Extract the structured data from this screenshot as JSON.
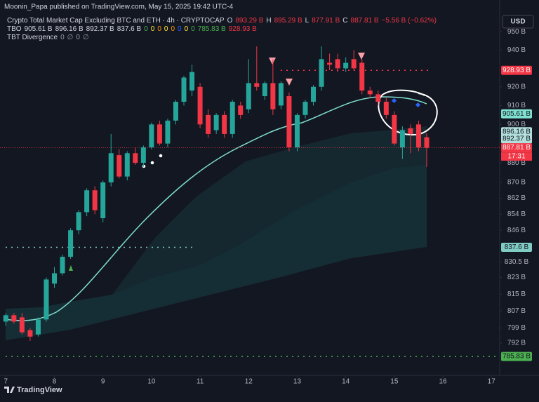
{
  "publisher": "Moonin_Papa published on TradingView.com, May 15, 2025 19:42 UTC-4",
  "legend": {
    "symbol": "Crypto Total Market Cap Excluding BTC and ETH · 4h · CRYPTOCAP",
    "ohlc": [
      {
        "label": "O",
        "value": "893.29 B"
      },
      {
        "label": "H",
        "value": "895.29 B"
      },
      {
        "label": "L",
        "value": "877.91 B"
      },
      {
        "label": "C",
        "value": "887.81 B"
      }
    ],
    "change": "−5.56 B (−0.62%)",
    "tbo_name": "TBO",
    "tbo_values": [
      {
        "text": "905.61 B",
        "color": "#d1d4dc"
      },
      {
        "text": "896.16 B",
        "color": "#d1d4dc"
      },
      {
        "text": "892.37 B",
        "color": "#d1d4dc"
      },
      {
        "text": "837.6 B",
        "color": "#d1d4dc"
      },
      {
        "text": "0",
        "color": "#4caf50"
      },
      {
        "text": "0",
        "color": "#ffeb3b"
      },
      {
        "text": "0",
        "color": "#ff9800"
      },
      {
        "text": "0",
        "color": "#ffeb3b"
      },
      {
        "text": "0",
        "color": "#ff9800"
      },
      {
        "text": "0",
        "color": "#2962ff"
      },
      {
        "text": "0",
        "color": "#ffeb3b"
      },
      {
        "text": "0",
        "color": "#4caf50"
      },
      {
        "text": "785.83 B",
        "color": "#4caf50"
      },
      {
        "text": "928.93 B",
        "color": "#f23645"
      }
    ],
    "tbt_name": "TBT Divergence",
    "tbt_values": [
      "0",
      "∅",
      "0",
      "∅"
    ]
  },
  "currency": "USD",
  "brand": "TradingView",
  "chart_data": {
    "type": "candlestick",
    "log_scale": true,
    "up_color": "#26a69a",
    "down_color": "#f23645",
    "ylim": [
      782,
      960
    ],
    "xlim": [
      6.88,
      17.17
    ],
    "yticks": [
      {
        "value": 950,
        "label": "950 B"
      },
      {
        "value": 940,
        "label": "940 B"
      },
      {
        "value": 920,
        "label": "920 B"
      },
      {
        "value": 910,
        "label": "910 B"
      },
      {
        "value": 900,
        "label": "900 B"
      },
      {
        "value": 880,
        "label": "880 B"
      },
      {
        "value": 870,
        "label": "870 B"
      },
      {
        "value": 862,
        "label": "862 B"
      },
      {
        "value": 854,
        "label": "854 B"
      },
      {
        "value": 846,
        "label": "846 B"
      },
      {
        "value": 830.5,
        "label": "830.5 B"
      },
      {
        "value": 823,
        "label": "823 B"
      },
      {
        "value": 815,
        "label": "815 B"
      },
      {
        "value": 807,
        "label": "807 B"
      },
      {
        "value": 799,
        "label": "799 B"
      },
      {
        "value": 792,
        "label": "792 B"
      }
    ],
    "xticks": [
      7,
      8,
      9,
      10,
      11,
      12,
      13,
      14,
      15,
      16,
      17
    ],
    "candles": [
      [
        802,
        806,
        800,
        805
      ],
      [
        805,
        806,
        801,
        802
      ],
      [
        804,
        806,
        796,
        797
      ],
      [
        798,
        799,
        793,
        795
      ],
      [
        796,
        804,
        795,
        803
      ],
      [
        803,
        823,
        802,
        822
      ],
      [
        820,
        828,
        818,
        825
      ],
      [
        825,
        834,
        824,
        833
      ],
      [
        833,
        847,
        832,
        846
      ],
      [
        846,
        856,
        844,
        855
      ],
      [
        855,
        867,
        853,
        866
      ],
      [
        866,
        868,
        854,
        856
      ],
      [
        852,
        871,
        850,
        870
      ],
      [
        870,
        895,
        868,
        885
      ],
      [
        884,
        887,
        872,
        873
      ],
      [
        873,
        886,
        871,
        885
      ],
      [
        885,
        888,
        879,
        880
      ],
      [
        880,
        889,
        878,
        888
      ],
      [
        888,
        901,
        887,
        900
      ],
      [
        900,
        902,
        889,
        890
      ],
      [
        890,
        903,
        888,
        902
      ],
      [
        902,
        913,
        900,
        912
      ],
      [
        912,
        926,
        910,
        925
      ],
      [
        918,
        932,
        915,
        928
      ],
      [
        920,
        922,
        898,
        900
      ],
      [
        905,
        908,
        893,
        895
      ],
      [
        897,
        906,
        895,
        905
      ],
      [
        905,
        907,
        893,
        895
      ],
      [
        895,
        913,
        893,
        912
      ],
      [
        910,
        912,
        903,
        905
      ],
      [
        908,
        935,
        906,
        922
      ],
      [
        922,
        942,
        918,
        920
      ],
      [
        915,
        923,
        913,
        922
      ],
      [
        922,
        935,
        905,
        908
      ],
      [
        910,
        923,
        908,
        922
      ],
      [
        915,
        917,
        886,
        888
      ],
      [
        888,
        906,
        886,
        905
      ],
      [
        905,
        913,
        903,
        912
      ],
      [
        912,
        921,
        910,
        920
      ],
      [
        920,
        942,
        918,
        935
      ],
      [
        933,
        938,
        929,
        932
      ],
      [
        935,
        938,
        928,
        930
      ],
      [
        930,
        936,
        928,
        933
      ],
      [
        935,
        940,
        929,
        930
      ],
      [
        933,
        935,
        916,
        918
      ],
      [
        918,
        920,
        914,
        916
      ],
      [
        916,
        918,
        910,
        912
      ],
      [
        912,
        914,
        903,
        905
      ],
      [
        905,
        907,
        889,
        890
      ],
      [
        888,
        899,
        882,
        897
      ],
      [
        898,
        900,
        885,
        895
      ],
      [
        900,
        902,
        886,
        888
      ],
      [
        893.29,
        895.29,
        877.91,
        887.81
      ]
    ],
    "levels": [
      {
        "value": 928.93,
        "label": "928.93 B",
        "kind": "resistance"
      },
      {
        "value": 905.61,
        "label": "905.61 B",
        "kind": "fast"
      },
      {
        "value": 896.16,
        "label": "896.16 B",
        "kind": "mid"
      },
      {
        "value": 892.37,
        "label": "892.37 B",
        "kind": "mid"
      },
      {
        "value": 887.81,
        "label": "887.81 B",
        "kind": "price"
      },
      {
        "value": 837.6,
        "label": "837.6 B",
        "kind": "slow"
      },
      {
        "value": 785.83,
        "label": "785.83 B",
        "kind": "support"
      }
    ],
    "countdown": "17:31"
  }
}
